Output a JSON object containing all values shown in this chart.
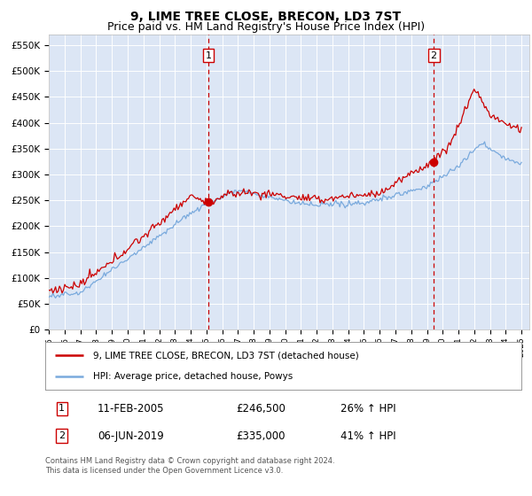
{
  "title": "9, LIME TREE CLOSE, BRECON, LD3 7ST",
  "subtitle": "Price paid vs. HM Land Registry's House Price Index (HPI)",
  "ylim": [
    0,
    570000
  ],
  "yticks": [
    0,
    50000,
    100000,
    150000,
    200000,
    250000,
    300000,
    350000,
    400000,
    450000,
    500000,
    550000
  ],
  "xlim_start": 1995.0,
  "xlim_end": 2025.5,
  "background_color": "#dce6f5",
  "grid_color": "#ffffff",
  "sale1_x": 2005.12,
  "sale1_y": 246500,
  "sale1_label": "1",
  "sale1_date": "11-FEB-2005",
  "sale1_price": "£246,500",
  "sale1_hpi": "26% ↑ HPI",
  "sale2_x": 2019.43,
  "sale2_y": 335000,
  "sale2_label": "2",
  "sale2_date": "06-JUN-2019",
  "sale2_price": "£335,000",
  "sale2_hpi": "41% ↑ HPI",
  "red_line_color": "#cc0000",
  "blue_line_color": "#7aaadd",
  "legend_label_red": "9, LIME TREE CLOSE, BRECON, LD3 7ST (detached house)",
  "legend_label_blue": "HPI: Average price, detached house, Powys",
  "footer_text": "Contains HM Land Registry data © Crown copyright and database right 2024.\nThis data is licensed under the Open Government Licence v3.0.",
  "title_fontsize": 10,
  "subtitle_fontsize": 9
}
